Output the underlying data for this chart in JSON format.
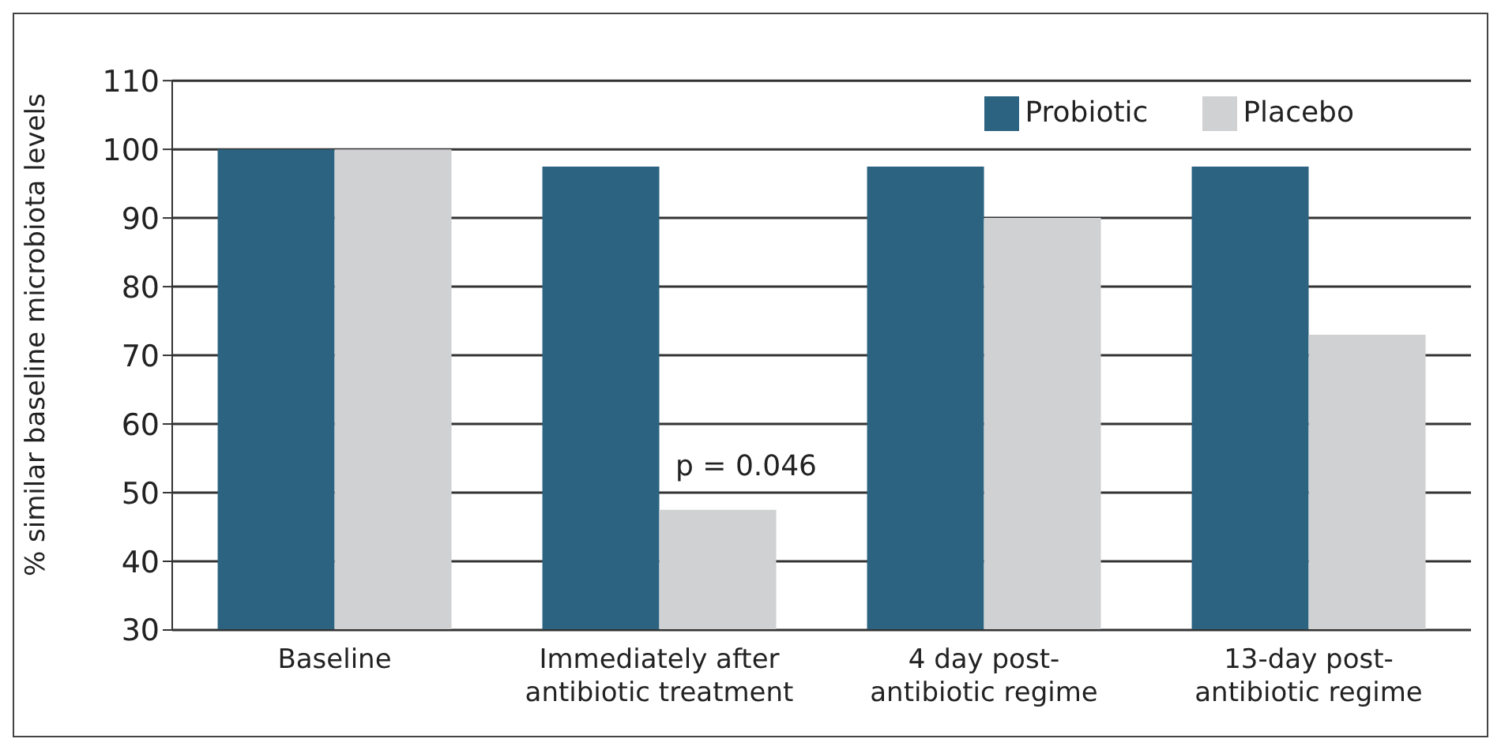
{
  "chart_data": {
    "type": "bar",
    "ylabel": "% similar baseline microbiota levels",
    "categories": [
      "Baseline",
      "Immediately after\nantibiotic treatment",
      "4 day post-\nantibiotic regime",
      "13-day post-\nantibiotic regime"
    ],
    "series": [
      {
        "name": "Probiotic",
        "color": "#2c6380",
        "values": [
          100,
          97.5,
          97.5,
          97.5
        ]
      },
      {
        "name": "Placebo",
        "color": "#d0d1d3",
        "values": [
          100,
          47.5,
          90,
          73
        ]
      }
    ],
    "ylim": [
      30,
      110
    ],
    "yticks": [
      30,
      40,
      50,
      60,
      70,
      80,
      90,
      100,
      110
    ],
    "grid": "y",
    "legend": "top right",
    "annotations": [
      {
        "text": "p = 0.046",
        "x": "Immediately after\nantibiotic treatment",
        "y": 54
      }
    ]
  }
}
